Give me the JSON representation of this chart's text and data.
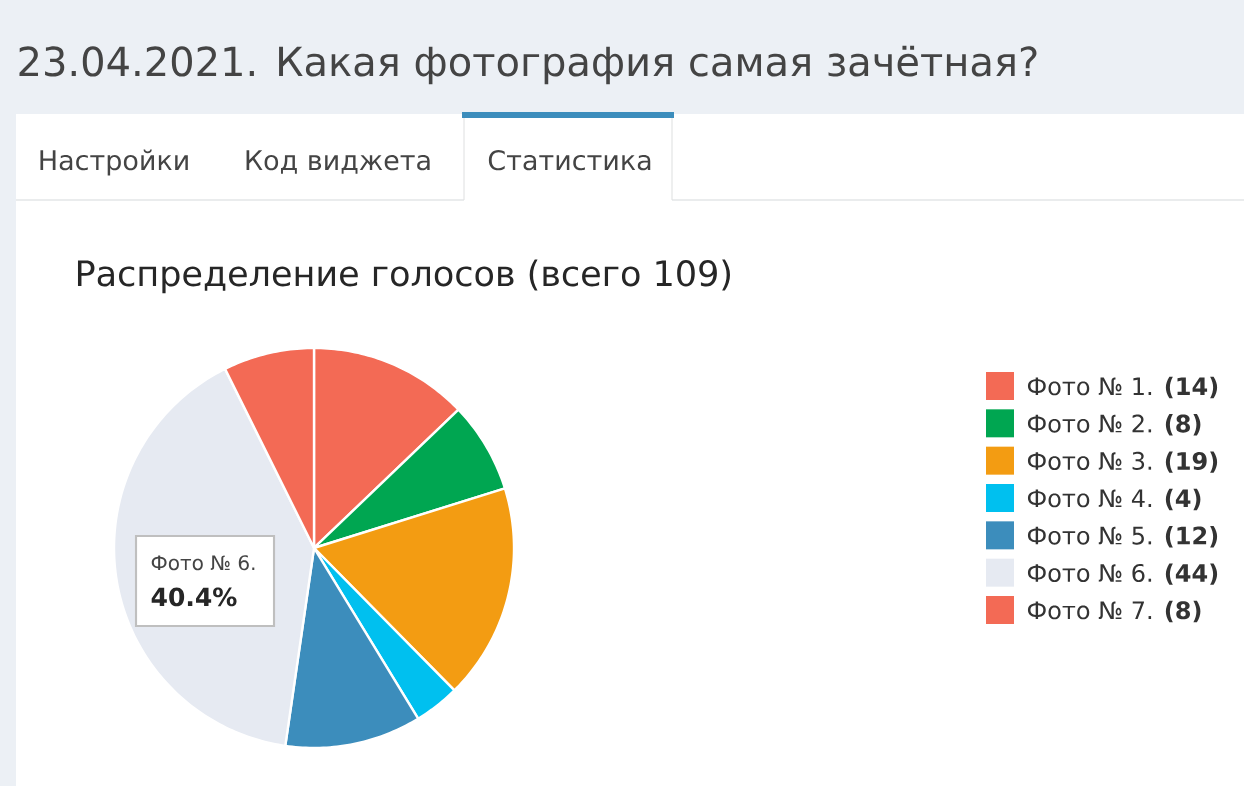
{
  "chart_data": {
    "type": "pie",
    "title": "23.04.2021. Какая фотография самая зачётная?",
    "subtitle": "Распределение голосов (всего 109)",
    "categories": [
      "Фото № 1.",
      "Фото № 2.",
      "Фото № 3.",
      "Фото № 4.",
      "Фото № 5.",
      "Фото № 6.",
      "Фото № 7."
    ],
    "values": [
      14,
      8,
      19,
      4,
      12,
      44,
      8
    ],
    "value_labels": [
      "(14)",
      "(8)",
      "(19)",
      "(4)",
      "(12)",
      "(44)",
      "(8)"
    ],
    "colors": [
      "#f36a55",
      "#00a651",
      "#f39c12",
      "#00c0ef",
      "#3c8dbc",
      "#e6eaf2",
      "#f36a55"
    ],
    "legend": "right",
    "annotations": [
      "Настройки",
      "Код виджета",
      "Статистика",
      "Фото № 6.",
      "40.4%"
    ]
  }
}
